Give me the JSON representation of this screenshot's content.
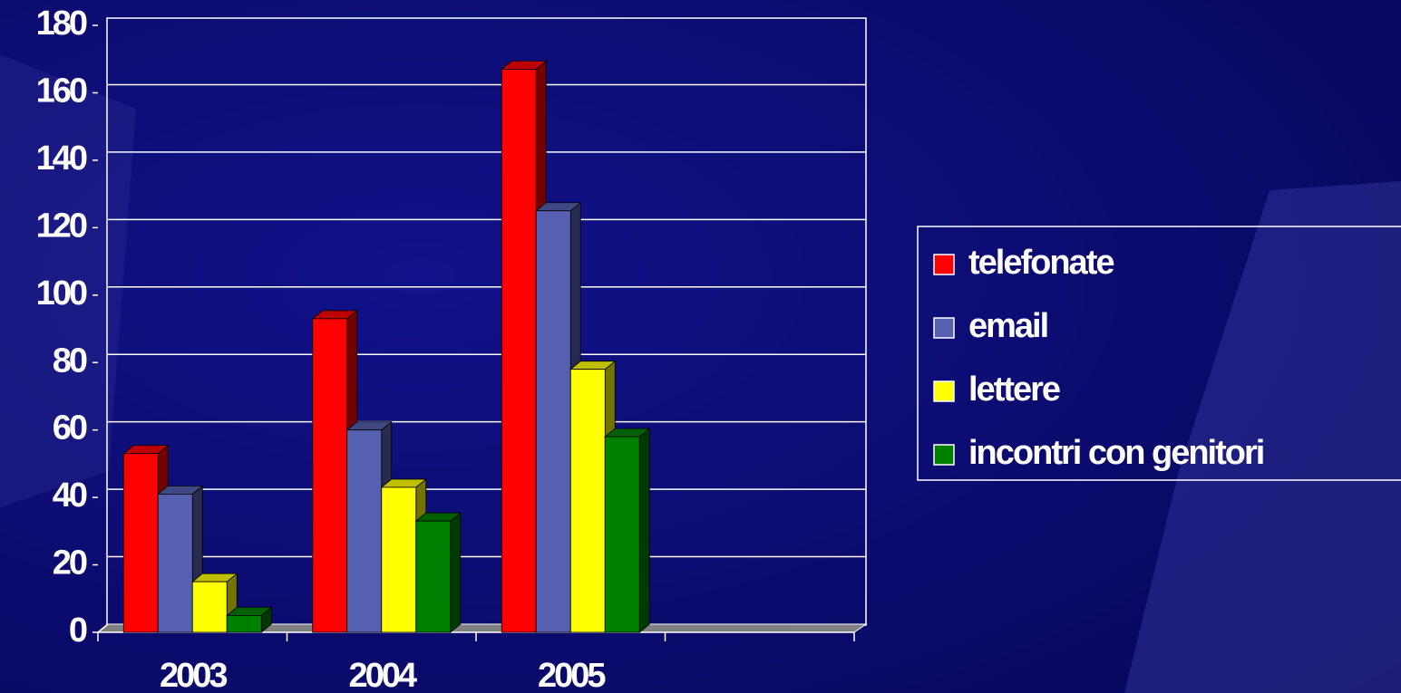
{
  "chart_data": {
    "type": "bar3d",
    "categories": [
      "2003",
      "2004",
      "2005",
      null
    ],
    "series": [
      {
        "name": "telefonate",
        "color": "#ff0000",
        "values": [
          53,
          93,
          167,
          null
        ]
      },
      {
        "name": "email",
        "color": "#5560b0",
        "values": [
          41,
          60,
          125,
          null
        ]
      },
      {
        "name": "lettere",
        "color": "#ffff00",
        "values": [
          15,
          43,
          78,
          null
        ]
      },
      {
        "name": "incontri con genitori",
        "color": "#008000",
        "values": [
          5,
          33,
          58,
          null
        ]
      }
    ],
    "ylim": [
      0,
      180
    ],
    "yticks": [
      0,
      20,
      40,
      60,
      80,
      100,
      120,
      140,
      160,
      180
    ],
    "grid": true,
    "legend": "right"
  }
}
